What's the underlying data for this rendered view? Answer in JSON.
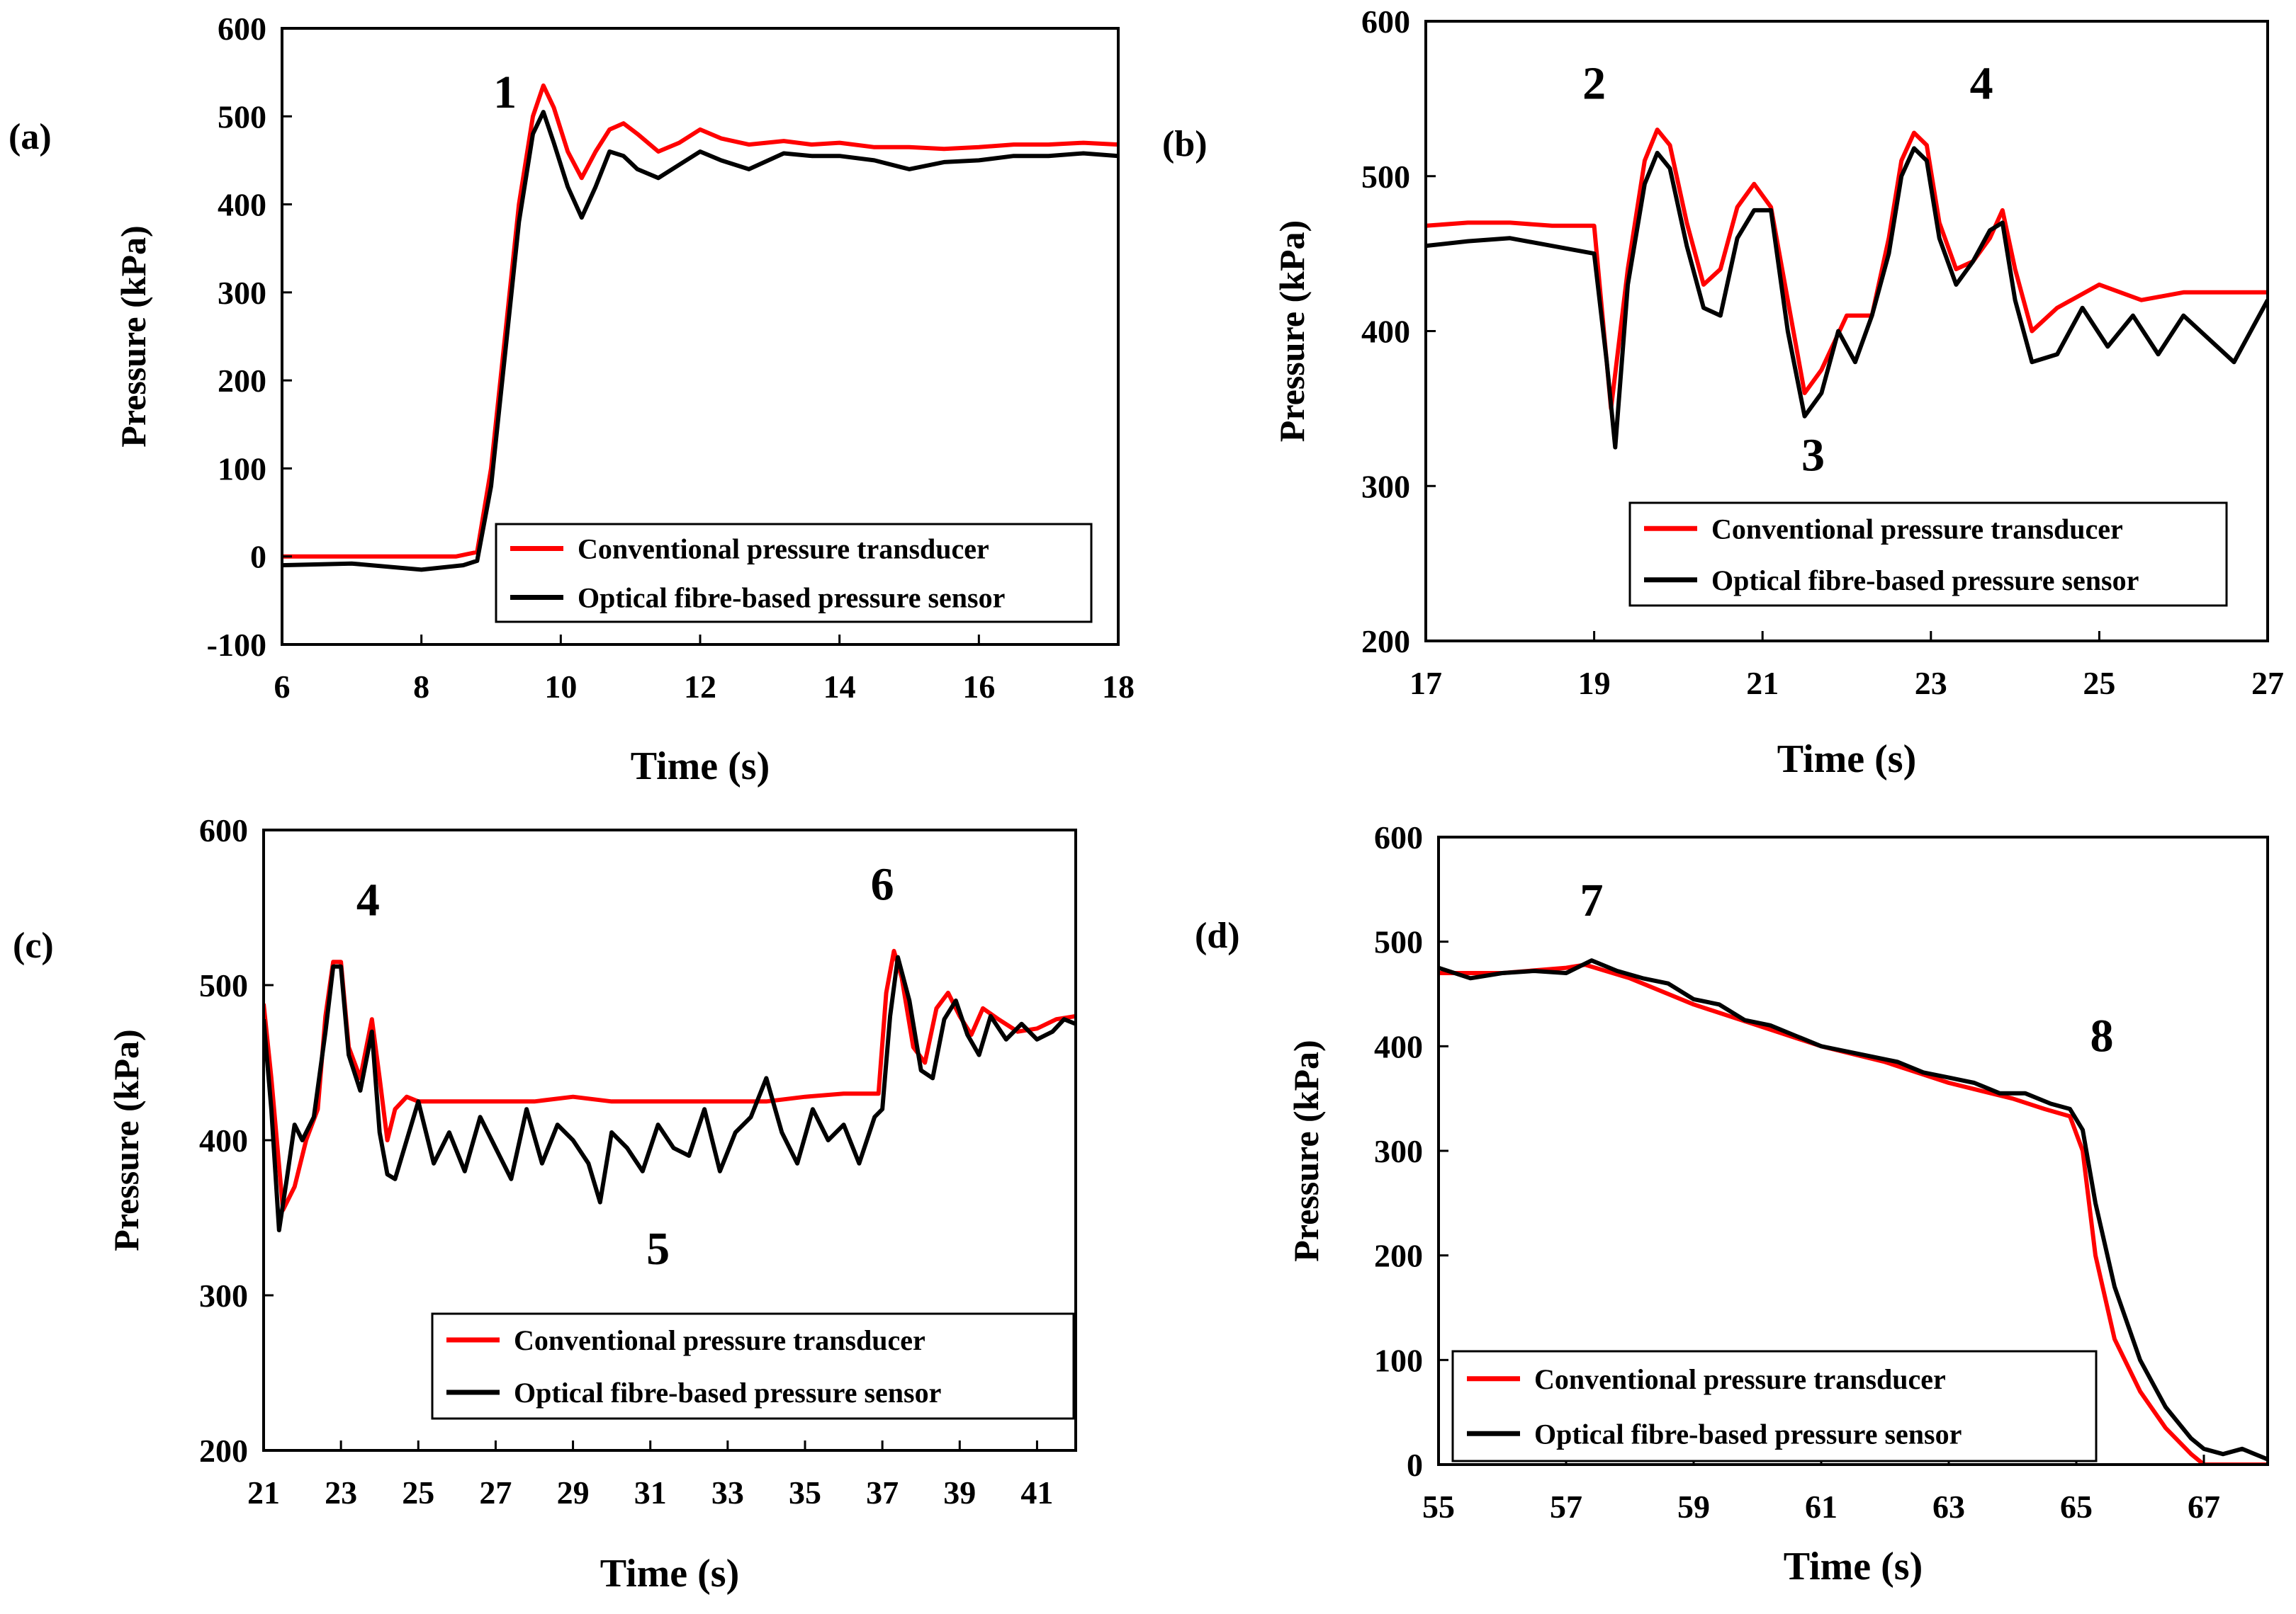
{
  "chart_data": [
    {
      "panel": "(a)",
      "type": "line",
      "xlabel": "Time (s)",
      "ylabel": "Pressure (kPa)",
      "xlim": [
        6,
        18
      ],
      "ylim": [
        -100,
        600
      ],
      "xticks": [
        "6",
        "8",
        "10",
        "12",
        "14",
        "16",
        "18"
      ],
      "yticks": [
        "-100",
        "0",
        "100",
        "200",
        "300",
        "400",
        "500",
        "600"
      ],
      "legend_position": "bottom-right",
      "annotations": [
        {
          "text": "1",
          "x": 9.2,
          "y": 510
        }
      ],
      "series": [
        {
          "name": "Conventional pressure transducer",
          "color": "#ff0000",
          "x": [
            6,
            8.0,
            8.5,
            8.8,
            9.0,
            9.2,
            9.4,
            9.6,
            9.75,
            9.9,
            10.1,
            10.3,
            10.5,
            10.7,
            10.9,
            11.1,
            11.4,
            11.7,
            12.0,
            12.3,
            12.7,
            13.2,
            13.6,
            14,
            14.5,
            15,
            15.5,
            16,
            16.5,
            17,
            17.5,
            18
          ],
          "y": [
            0,
            0,
            0,
            5,
            100,
            250,
            400,
            500,
            535,
            510,
            460,
            430,
            460,
            485,
            492,
            480,
            460,
            470,
            485,
            475,
            468,
            472,
            468,
            470,
            465,
            465,
            463,
            465,
            468,
            468,
            470,
            468
          ]
        },
        {
          "name": "Optical fibre-based pressure sensor",
          "color": "#000000",
          "x": [
            6,
            7.0,
            8.0,
            8.6,
            8.8,
            9.0,
            9.2,
            9.4,
            9.6,
            9.75,
            9.9,
            10.1,
            10.3,
            10.5,
            10.7,
            10.9,
            11.1,
            11.4,
            11.7,
            12.0,
            12.3,
            12.7,
            13.2,
            13.6,
            14,
            14.5,
            15,
            15.5,
            16,
            16.5,
            17,
            17.5,
            18
          ],
          "y": [
            -10,
            -8,
            -15,
            -10,
            -5,
            80,
            230,
            380,
            480,
            505,
            470,
            420,
            385,
            420,
            460,
            455,
            440,
            430,
            445,
            460,
            450,
            440,
            458,
            455,
            455,
            450,
            440,
            448,
            450,
            455,
            455,
            458,
            455
          ]
        }
      ]
    },
    {
      "panel": "(b)",
      "type": "line",
      "xlabel": "Time (s)",
      "ylabel": "Pressure (kPa)",
      "xlim": [
        17,
        27
      ],
      "ylim": [
        200,
        600
      ],
      "xticks": [
        "17",
        "19",
        "21",
        "23",
        "25",
        "27"
      ],
      "yticks": [
        "200",
        "300",
        "400",
        "500",
        "600"
      ],
      "legend_position": "bottom-right",
      "annotations": [
        {
          "text": "2",
          "x": 19.0,
          "y": 550
        },
        {
          "text": "3",
          "x": 21.6,
          "y": 310
        },
        {
          "text": "4",
          "x": 23.6,
          "y": 550
        }
      ],
      "series": [
        {
          "name": "Conventional pressure transducer",
          "color": "#ff0000",
          "x": [
            17,
            17.5,
            18,
            18.5,
            19.0,
            19.2,
            19.4,
            19.6,
            19.75,
            19.9,
            20.1,
            20.3,
            20.5,
            20.7,
            20.9,
            21.1,
            21.3,
            21.5,
            21.7,
            22.0,
            22.3,
            22.5,
            22.65,
            22.8,
            22.95,
            23.1,
            23.3,
            23.5,
            23.7,
            23.85,
            24.0,
            24.2,
            24.5,
            25,
            25.5,
            26,
            26.5,
            27
          ],
          "y": [
            468,
            470,
            470,
            468,
            468,
            350,
            440,
            510,
            530,
            520,
            470,
            430,
            440,
            480,
            495,
            480,
            420,
            360,
            375,
            410,
            410,
            460,
            510,
            528,
            520,
            470,
            440,
            445,
            460,
            478,
            440,
            400,
            415,
            430,
            420,
            425,
            425,
            425
          ]
        },
        {
          "name": "Optical fibre-based pressure sensor",
          "color": "#000000",
          "x": [
            17,
            17.5,
            18,
            18.5,
            19.0,
            19.15,
            19.25,
            19.4,
            19.6,
            19.75,
            19.9,
            20.1,
            20.3,
            20.5,
            20.7,
            20.9,
            21.1,
            21.3,
            21.5,
            21.7,
            21.9,
            22.1,
            22.3,
            22.5,
            22.65,
            22.8,
            22.95,
            23.1,
            23.3,
            23.5,
            23.7,
            23.85,
            24.0,
            24.2,
            24.5,
            24.8,
            25.1,
            25.4,
            25.7,
            26.0,
            26.3,
            26.6,
            26.8,
            27
          ],
          "y": [
            455,
            458,
            460,
            455,
            450,
            380,
            325,
            430,
            495,
            515,
            505,
            455,
            415,
            410,
            460,
            478,
            478,
            400,
            345,
            360,
            400,
            380,
            410,
            450,
            500,
            518,
            510,
            460,
            430,
            445,
            465,
            470,
            420,
            380,
            385,
            415,
            390,
            410,
            385,
            410,
            395,
            380,
            400,
            420
          ]
        }
      ]
    },
    {
      "panel": "(c)",
      "type": "line",
      "xlabel": "Time (s)",
      "ylabel": "Pressure (kPa)",
      "xlim": [
        21,
        42
      ],
      "ylim": [
        200,
        600
      ],
      "xticks": [
        "21",
        "23",
        "25",
        "27",
        "29",
        "31",
        "33",
        "35",
        "37",
        "39",
        "41"
      ],
      "yticks": [
        "200",
        "300",
        "400",
        "500",
        "600"
      ],
      "legend_position": "bottom-right",
      "annotations": [
        {
          "text": "4",
          "x": 23.7,
          "y": 545
        },
        {
          "text": "5",
          "x": 31.2,
          "y": 320
        },
        {
          "text": "6",
          "x": 37.0,
          "y": 555
        }
      ],
      "series": [
        {
          "name": "Conventional pressure transducer",
          "color": "#ff0000",
          "x": [
            21,
            21.2,
            21.5,
            21.8,
            22.1,
            22.4,
            22.6,
            22.8,
            23.0,
            23.2,
            23.5,
            23.8,
            24.0,
            24.2,
            24.4,
            24.7,
            25,
            26,
            27,
            28,
            29,
            30,
            31,
            32,
            33,
            34,
            35,
            36,
            36.9,
            37.1,
            37.3,
            37.5,
            37.8,
            38.1,
            38.4,
            38.7,
            39.0,
            39.3,
            39.6,
            40,
            40.5,
            41,
            41.5,
            42
          ],
          "y": [
            488,
            440,
            355,
            370,
            400,
            420,
            480,
            515,
            515,
            460,
            440,
            478,
            440,
            400,
            420,
            428,
            425,
            425,
            425,
            425,
            428,
            425,
            425,
            425,
            425,
            425,
            428,
            430,
            430,
            495,
            522,
            505,
            460,
            450,
            485,
            495,
            480,
            468,
            485,
            478,
            470,
            472,
            478,
            480
          ]
        },
        {
          "name": "Optical fibre-based pressure sensor",
          "color": "#000000",
          "x": [
            21,
            21.2,
            21.4,
            21.6,
            21.8,
            22.0,
            22.3,
            22.6,
            22.8,
            23.0,
            23.2,
            23.5,
            23.8,
            24.0,
            24.2,
            24.4,
            24.7,
            25.0,
            25.4,
            25.8,
            26.2,
            26.6,
            27.0,
            27.4,
            27.8,
            28.2,
            28.6,
            29.0,
            29.4,
            29.7,
            30.0,
            30.4,
            30.8,
            31.2,
            31.6,
            32.0,
            32.4,
            32.8,
            33.2,
            33.6,
            34.0,
            34.4,
            34.8,
            35.2,
            35.6,
            36.0,
            36.4,
            36.8,
            37.0,
            37.2,
            37.4,
            37.7,
            38.0,
            38.3,
            38.6,
            38.9,
            39.2,
            39.5,
            39.8,
            40.2,
            40.6,
            41.0,
            41.4,
            41.7,
            42
          ],
          "y": [
            478,
            420,
            342,
            375,
            410,
            400,
            415,
            470,
            512,
            512,
            455,
            432,
            470,
            405,
            378,
            375,
            400,
            425,
            385,
            405,
            380,
            415,
            395,
            375,
            420,
            385,
            410,
            400,
            385,
            360,
            405,
            395,
            380,
            410,
            395,
            390,
            420,
            380,
            405,
            415,
            440,
            405,
            385,
            420,
            400,
            410,
            385,
            415,
            420,
            480,
            518,
            490,
            445,
            440,
            478,
            490,
            468,
            455,
            480,
            465,
            475,
            465,
            470,
            478,
            475
          ]
        }
      ]
    },
    {
      "panel": "(d)",
      "type": "line",
      "xlabel": "Time (s)",
      "ylabel": "Pressure (kPa)",
      "xlim": [
        55,
        68
      ],
      "ylim": [
        0,
        600
      ],
      "xticks": [
        "55",
        "57",
        "59",
        "61",
        "63",
        "65",
        "67"
      ],
      "yticks": [
        "0",
        "100",
        "200",
        "300",
        "400",
        "500",
        "600"
      ],
      "legend_position": "bottom-right",
      "annotations": [
        {
          "text": "7",
          "x": 57.4,
          "y": 525
        },
        {
          "text": "8",
          "x": 65.4,
          "y": 395
        }
      ],
      "series": [
        {
          "name": "Conventional pressure transducer",
          "color": "#ff0000",
          "x": [
            55,
            56,
            57,
            57.3,
            58,
            59,
            60,
            61,
            62,
            63,
            64,
            64.5,
            64.9,
            65.1,
            65.3,
            65.6,
            66.0,
            66.4,
            66.8,
            67.0,
            67.5,
            68
          ],
          "y": [
            470,
            470,
            475,
            478,
            465,
            440,
            420,
            400,
            385,
            365,
            350,
            340,
            333,
            300,
            200,
            120,
            70,
            35,
            10,
            0,
            0,
            0
          ]
        },
        {
          "name": "Optical fibre-based pressure sensor",
          "color": "#000000",
          "x": [
            55,
            55.5,
            56,
            56.5,
            57,
            57.4,
            57.8,
            58.2,
            58.6,
            59.0,
            59.4,
            59.8,
            60.2,
            60.6,
            61.0,
            61.4,
            61.8,
            62.2,
            62.6,
            63.0,
            63.4,
            63.8,
            64.2,
            64.6,
            64.9,
            65.1,
            65.3,
            65.6,
            66.0,
            66.4,
            66.8,
            67.0,
            67.3,
            67.6,
            68
          ],
          "y": [
            475,
            465,
            470,
            472,
            470,
            482,
            472,
            465,
            460,
            445,
            440,
            425,
            420,
            410,
            400,
            395,
            390,
            385,
            375,
            370,
            365,
            355,
            355,
            345,
            340,
            320,
            250,
            170,
            100,
            55,
            25,
            15,
            10,
            15,
            5
          ]
        }
      ]
    }
  ]
}
